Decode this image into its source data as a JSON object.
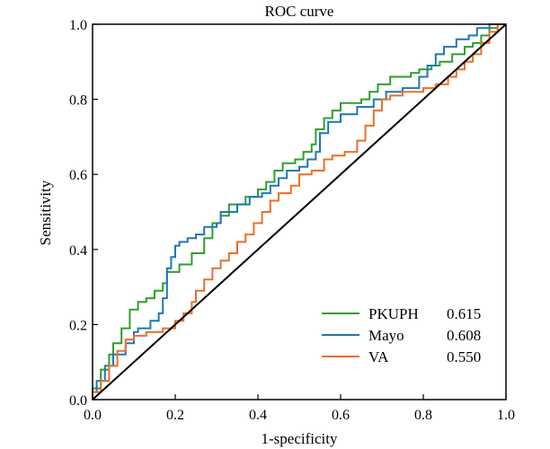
{
  "chart_data": {
    "type": "line",
    "title": "ROC curve",
    "xlabel": "1-specificity",
    "ylabel": "Sensitivity",
    "xlim": [
      0,
      1
    ],
    "ylim": [
      0,
      1
    ],
    "xticks": [
      "0.0",
      "0.2",
      "0.4",
      "0.6",
      "0.8",
      "1.0"
    ],
    "yticks": [
      "0.0",
      "0.2",
      "0.4",
      "0.6",
      "0.8",
      "1.0"
    ],
    "grid": false,
    "legend_position": "bottom-right",
    "colors": {
      "PKUPH": "#2ca02c",
      "Mayo": "#1f77b4",
      "VA": "#e8702a",
      "diagonal": "#000000"
    },
    "series": [
      {
        "name": "PKUPH",
        "auc": "0.615",
        "points": [
          [
            0,
            0
          ],
          [
            0,
            0.03
          ],
          [
            0.02,
            0.03
          ],
          [
            0.02,
            0.08
          ],
          [
            0.04,
            0.08
          ],
          [
            0.04,
            0.12
          ],
          [
            0.05,
            0.12
          ],
          [
            0.05,
            0.15
          ],
          [
            0.07,
            0.15
          ],
          [
            0.07,
            0.19
          ],
          [
            0.09,
            0.19
          ],
          [
            0.09,
            0.24
          ],
          [
            0.11,
            0.24
          ],
          [
            0.11,
            0.26
          ],
          [
            0.13,
            0.26
          ],
          [
            0.13,
            0.27
          ],
          [
            0.15,
            0.27
          ],
          [
            0.15,
            0.29
          ],
          [
            0.17,
            0.29
          ],
          [
            0.17,
            0.31
          ],
          [
            0.18,
            0.31
          ],
          [
            0.18,
            0.34
          ],
          [
            0.21,
            0.34
          ],
          [
            0.21,
            0.36
          ],
          [
            0.24,
            0.36
          ],
          [
            0.24,
            0.39
          ],
          [
            0.27,
            0.39
          ],
          [
            0.27,
            0.43
          ],
          [
            0.29,
            0.43
          ],
          [
            0.29,
            0.47
          ],
          [
            0.31,
            0.47
          ],
          [
            0.31,
            0.49
          ],
          [
            0.33,
            0.49
          ],
          [
            0.33,
            0.52
          ],
          [
            0.37,
            0.52
          ],
          [
            0.37,
            0.54
          ],
          [
            0.4,
            0.54
          ],
          [
            0.4,
            0.56
          ],
          [
            0.42,
            0.56
          ],
          [
            0.42,
            0.58
          ],
          [
            0.44,
            0.58
          ],
          [
            0.44,
            0.61
          ],
          [
            0.46,
            0.61
          ],
          [
            0.46,
            0.63
          ],
          [
            0.49,
            0.63
          ],
          [
            0.49,
            0.64
          ],
          [
            0.51,
            0.64
          ],
          [
            0.51,
            0.66
          ],
          [
            0.53,
            0.66
          ],
          [
            0.53,
            0.68
          ],
          [
            0.54,
            0.68
          ],
          [
            0.54,
            0.72
          ],
          [
            0.56,
            0.72
          ],
          [
            0.56,
            0.75
          ],
          [
            0.58,
            0.75
          ],
          [
            0.58,
            0.77
          ],
          [
            0.6,
            0.77
          ],
          [
            0.6,
            0.79
          ],
          [
            0.65,
            0.79
          ],
          [
            0.65,
            0.8
          ],
          [
            0.67,
            0.8
          ],
          [
            0.67,
            0.82
          ],
          [
            0.69,
            0.82
          ],
          [
            0.69,
            0.84
          ],
          [
            0.72,
            0.84
          ],
          [
            0.72,
            0.86
          ],
          [
            0.77,
            0.86
          ],
          [
            0.77,
            0.87
          ],
          [
            0.79,
            0.87
          ],
          [
            0.79,
            0.88
          ],
          [
            0.82,
            0.88
          ],
          [
            0.82,
            0.89
          ],
          [
            0.84,
            0.89
          ],
          [
            0.84,
            0.9
          ],
          [
            0.87,
            0.9
          ],
          [
            0.87,
            0.92
          ],
          [
            0.9,
            0.92
          ],
          [
            0.9,
            0.94
          ],
          [
            0.92,
            0.94
          ],
          [
            0.92,
            0.95
          ],
          [
            0.94,
            0.95
          ],
          [
            0.94,
            0.97
          ],
          [
            0.96,
            0.97
          ],
          [
            0.96,
            0.99
          ],
          [
            0.98,
            0.99
          ],
          [
            0.98,
            1.0
          ],
          [
            1.0,
            1.0
          ]
        ]
      },
      {
        "name": "Mayo",
        "auc": "0.608",
        "points": [
          [
            0,
            0
          ],
          [
            0,
            0.02
          ],
          [
            0.01,
            0.02
          ],
          [
            0.01,
            0.05
          ],
          [
            0.03,
            0.05
          ],
          [
            0.03,
            0.09
          ],
          [
            0.05,
            0.09
          ],
          [
            0.05,
            0.12
          ],
          [
            0.08,
            0.12
          ],
          [
            0.08,
            0.15
          ],
          [
            0.1,
            0.15
          ],
          [
            0.1,
            0.18
          ],
          [
            0.11,
            0.18
          ],
          [
            0.11,
            0.19
          ],
          [
            0.14,
            0.19
          ],
          [
            0.14,
            0.21
          ],
          [
            0.16,
            0.21
          ],
          [
            0.16,
            0.23
          ],
          [
            0.17,
            0.23
          ],
          [
            0.17,
            0.27
          ],
          [
            0.18,
            0.27
          ],
          [
            0.18,
            0.35
          ],
          [
            0.19,
            0.35
          ],
          [
            0.19,
            0.38
          ],
          [
            0.2,
            0.38
          ],
          [
            0.2,
            0.41
          ],
          [
            0.21,
            0.41
          ],
          [
            0.21,
            0.42
          ],
          [
            0.23,
            0.42
          ],
          [
            0.23,
            0.43
          ],
          [
            0.25,
            0.43
          ],
          [
            0.25,
            0.44
          ],
          [
            0.27,
            0.44
          ],
          [
            0.27,
            0.46
          ],
          [
            0.3,
            0.46
          ],
          [
            0.3,
            0.47
          ],
          [
            0.31,
            0.47
          ],
          [
            0.31,
            0.5
          ],
          [
            0.35,
            0.5
          ],
          [
            0.35,
            0.52
          ],
          [
            0.38,
            0.52
          ],
          [
            0.38,
            0.54
          ],
          [
            0.41,
            0.54
          ],
          [
            0.41,
            0.55
          ],
          [
            0.43,
            0.55
          ],
          [
            0.43,
            0.57
          ],
          [
            0.45,
            0.57
          ],
          [
            0.45,
            0.59
          ],
          [
            0.47,
            0.59
          ],
          [
            0.47,
            0.61
          ],
          [
            0.5,
            0.61
          ],
          [
            0.5,
            0.62
          ],
          [
            0.52,
            0.62
          ],
          [
            0.52,
            0.64
          ],
          [
            0.54,
            0.64
          ],
          [
            0.54,
            0.66
          ],
          [
            0.55,
            0.66
          ],
          [
            0.55,
            0.71
          ],
          [
            0.57,
            0.71
          ],
          [
            0.57,
            0.74
          ],
          [
            0.6,
            0.74
          ],
          [
            0.6,
            0.76
          ],
          [
            0.64,
            0.76
          ],
          [
            0.64,
            0.78
          ],
          [
            0.68,
            0.78
          ],
          [
            0.68,
            0.8
          ],
          [
            0.71,
            0.8
          ],
          [
            0.71,
            0.82
          ],
          [
            0.75,
            0.82
          ],
          [
            0.75,
            0.83
          ],
          [
            0.79,
            0.83
          ],
          [
            0.79,
            0.86
          ],
          [
            0.81,
            0.86
          ],
          [
            0.81,
            0.89
          ],
          [
            0.83,
            0.89
          ],
          [
            0.83,
            0.92
          ],
          [
            0.85,
            0.92
          ],
          [
            0.85,
            0.94
          ],
          [
            0.88,
            0.94
          ],
          [
            0.88,
            0.96
          ],
          [
            0.91,
            0.96
          ],
          [
            0.91,
            0.97
          ],
          [
            0.93,
            0.97
          ],
          [
            0.93,
            0.99
          ],
          [
            0.96,
            0.99
          ],
          [
            0.96,
            1.0
          ],
          [
            1.0,
            1.0
          ]
        ]
      },
      {
        "name": "VA",
        "auc": "0.550",
        "points": [
          [
            0,
            0
          ],
          [
            0,
            0.02
          ],
          [
            0.02,
            0.02
          ],
          [
            0.02,
            0.05
          ],
          [
            0.04,
            0.05
          ],
          [
            0.04,
            0.09
          ],
          [
            0.06,
            0.09
          ],
          [
            0.06,
            0.13
          ],
          [
            0.08,
            0.13
          ],
          [
            0.08,
            0.16
          ],
          [
            0.1,
            0.16
          ],
          [
            0.1,
            0.17
          ],
          [
            0.13,
            0.17
          ],
          [
            0.13,
            0.18
          ],
          [
            0.17,
            0.18
          ],
          [
            0.17,
            0.19
          ],
          [
            0.2,
            0.19
          ],
          [
            0.2,
            0.21
          ],
          [
            0.22,
            0.21
          ],
          [
            0.22,
            0.23
          ],
          [
            0.24,
            0.23
          ],
          [
            0.24,
            0.26
          ],
          [
            0.25,
            0.26
          ],
          [
            0.25,
            0.29
          ],
          [
            0.27,
            0.29
          ],
          [
            0.27,
            0.32
          ],
          [
            0.29,
            0.32
          ],
          [
            0.29,
            0.35
          ],
          [
            0.31,
            0.35
          ],
          [
            0.31,
            0.37
          ],
          [
            0.33,
            0.37
          ],
          [
            0.33,
            0.39
          ],
          [
            0.35,
            0.39
          ],
          [
            0.35,
            0.42
          ],
          [
            0.37,
            0.42
          ],
          [
            0.37,
            0.44
          ],
          [
            0.39,
            0.44
          ],
          [
            0.39,
            0.47
          ],
          [
            0.41,
            0.47
          ],
          [
            0.41,
            0.5
          ],
          [
            0.43,
            0.5
          ],
          [
            0.43,
            0.53
          ],
          [
            0.45,
            0.53
          ],
          [
            0.45,
            0.55
          ],
          [
            0.48,
            0.55
          ],
          [
            0.48,
            0.57
          ],
          [
            0.5,
            0.57
          ],
          [
            0.5,
            0.6
          ],
          [
            0.53,
            0.6
          ],
          [
            0.53,
            0.61
          ],
          [
            0.56,
            0.61
          ],
          [
            0.56,
            0.64
          ],
          [
            0.58,
            0.64
          ],
          [
            0.58,
            0.65
          ],
          [
            0.61,
            0.65
          ],
          [
            0.61,
            0.66
          ],
          [
            0.64,
            0.66
          ],
          [
            0.64,
            0.69
          ],
          [
            0.66,
            0.69
          ],
          [
            0.66,
            0.73
          ],
          [
            0.68,
            0.73
          ],
          [
            0.68,
            0.77
          ],
          [
            0.7,
            0.77
          ],
          [
            0.7,
            0.8
          ],
          [
            0.72,
            0.8
          ],
          [
            0.72,
            0.81
          ],
          [
            0.75,
            0.81
          ],
          [
            0.75,
            0.82
          ],
          [
            0.8,
            0.82
          ],
          [
            0.8,
            0.83
          ],
          [
            0.83,
            0.83
          ],
          [
            0.83,
            0.84
          ],
          [
            0.86,
            0.84
          ],
          [
            0.86,
            0.86
          ],
          [
            0.88,
            0.86
          ],
          [
            0.88,
            0.88
          ],
          [
            0.9,
            0.88
          ],
          [
            0.9,
            0.9
          ],
          [
            0.92,
            0.9
          ],
          [
            0.92,
            0.92
          ],
          [
            0.94,
            0.92
          ],
          [
            0.94,
            0.95
          ],
          [
            0.96,
            0.95
          ],
          [
            0.96,
            0.98
          ],
          [
            0.98,
            0.98
          ],
          [
            0.98,
            1.0
          ],
          [
            1.0,
            1.0
          ]
        ]
      }
    ]
  }
}
